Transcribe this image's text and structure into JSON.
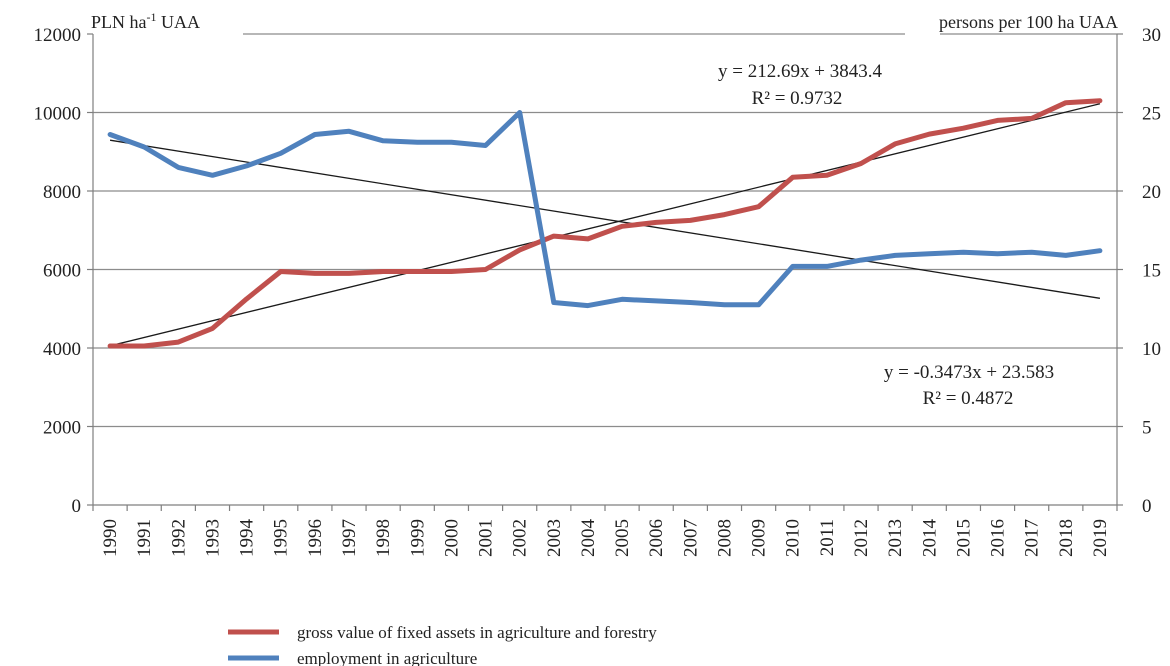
{
  "chart_data": {
    "type": "line",
    "x": [
      1990,
      1991,
      1992,
      1993,
      1994,
      1995,
      1996,
      1997,
      1998,
      1999,
      2000,
      2001,
      2002,
      2003,
      2004,
      2005,
      2006,
      2007,
      2008,
      2009,
      2010,
      2011,
      2012,
      2013,
      2014,
      2015,
      2016,
      2017,
      2018,
      2019
    ],
    "y_left": {
      "unit": "PLN ha-1 UAA",
      "ylim": [
        0,
        12000
      ],
      "ticks": [
        0,
        2000,
        4000,
        6000,
        8000,
        10000,
        12000
      ]
    },
    "y_right": {
      "unit": "persons per 100 ha UAA",
      "ylim": [
        0,
        30
      ],
      "ticks": [
        0,
        5,
        10,
        15,
        20,
        25,
        30
      ]
    },
    "grid": true,
    "legend_position": "bottom",
    "series": [
      {
        "name": "gross value of fixed assets in agriculture and forestry",
        "axis": "left",
        "color": "#c0504d",
        "values": [
          4050,
          4050,
          4150,
          4500,
          5250,
          5950,
          5900,
          5900,
          5950,
          5950,
          5950,
          6000,
          6500,
          6850,
          6780,
          7100,
          7200,
          7250,
          7400,
          7600,
          8350,
          8400,
          8700,
          9200,
          9450,
          9600,
          9800,
          9850,
          10250,
          10300
        ]
      },
      {
        "name": "employment in agriculture",
        "axis": "right",
        "color": "#4f81bd",
        "values": [
          23.6,
          22.8,
          21.5,
          21.0,
          21.6,
          22.4,
          23.6,
          23.8,
          23.2,
          23.1,
          23.1,
          22.9,
          25.0,
          12.9,
          12.7,
          13.1,
          13.0,
          12.9,
          12.75,
          12.75,
          15.2,
          15.2,
          15.6,
          15.9,
          16.0,
          16.1,
          16.0,
          16.1,
          15.9,
          16.2
        ]
      }
    ],
    "trendlines": [
      {
        "series": "gross value of fixed assets in agriculture and forestry",
        "axis": "left",
        "slope": 212.69,
        "intercept": 3843.4,
        "equation": "y = 212.69x + 3843.4",
        "r2": "R² = 0.9732"
      },
      {
        "series": "employment in agriculture",
        "axis": "right",
        "slope": -0.3473,
        "intercept": 23.583,
        "equation": "y = -0.3473x + 23.583",
        "r2": "R² = 0.4872"
      }
    ]
  },
  "labels": {
    "left_unit_main": "PLN ha",
    "left_unit_sup": "-1",
    "left_unit_tail": " UAA",
    "right_unit": "persons per 100 ha UAA"
  }
}
